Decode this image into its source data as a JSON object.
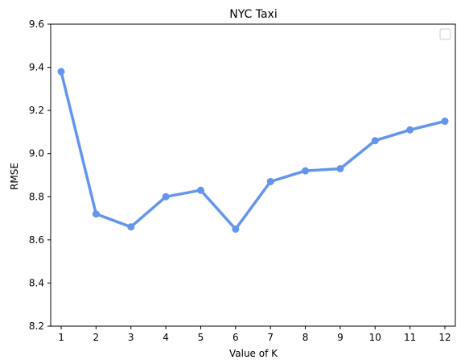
{
  "chart_data": {
    "type": "line",
    "title": "NYC Taxi",
    "xlabel": "Value of K",
    "ylabel": "RMSE",
    "x": [
      1,
      2,
      3,
      4,
      5,
      6,
      7,
      8,
      9,
      10,
      11,
      12
    ],
    "series": [
      {
        "values": [
          9.38,
          8.72,
          8.66,
          8.8,
          8.83,
          8.65,
          8.87,
          8.92,
          8.93,
          9.06,
          9.11,
          9.15
        ]
      }
    ],
    "xlim": [
      0.7,
      12.3
    ],
    "ylim": [
      8.2,
      9.6
    ],
    "yticks": [
      "8.2",
      "8.4",
      "8.6",
      "8.8",
      "9.0",
      "9.2",
      "9.4",
      "9.6"
    ],
    "xticks": [
      "1",
      "2",
      "3",
      "4",
      "5",
      "6",
      "7",
      "8",
      "9",
      "10",
      "11",
      "12"
    ],
    "grid": false,
    "legend": "top-right",
    "line_color": "#6495ED"
  }
}
